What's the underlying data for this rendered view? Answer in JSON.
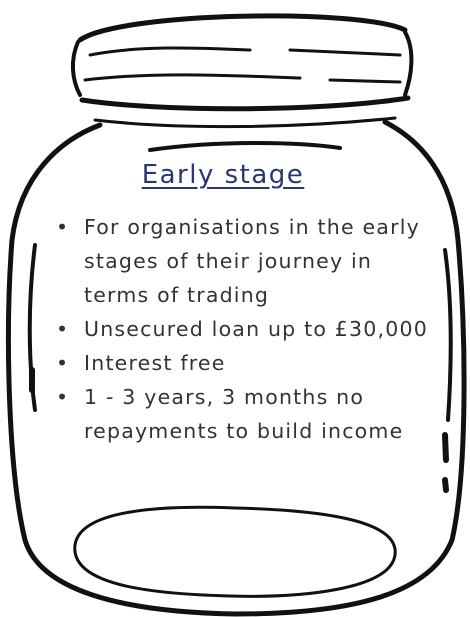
{
  "title": "Early stage",
  "bullets": [
    "For organisations in the early stages of their journey in terms of trading",
    "Unsecured loan up to £30,000",
    "Interest free",
    "1 - 3 years, 3 months no repayments to build income"
  ]
}
